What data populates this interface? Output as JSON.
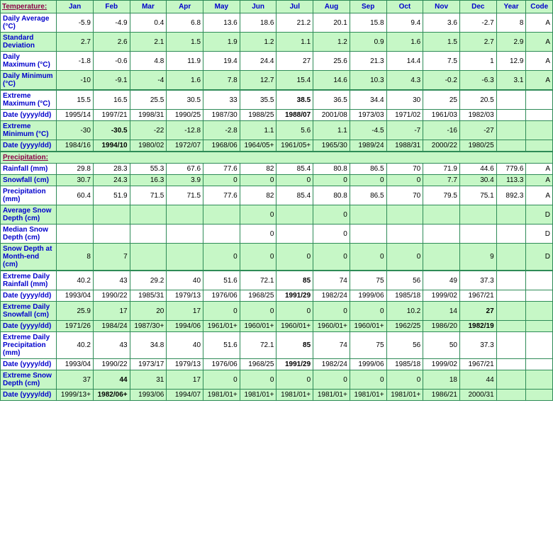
{
  "header": {
    "label": "Temperature:",
    "months": [
      "Jan",
      "Feb",
      "Mar",
      "Apr",
      "May",
      "Jun",
      "Jul",
      "Aug",
      "Sep",
      "Oct",
      "Nov",
      "Dec"
    ],
    "year": "Year",
    "code": "Code"
  },
  "section2_label": "Precipitation:",
  "rows": [
    {
      "label": "Daily Average (°C)",
      "shade": "odd",
      "cells": [
        "-5.9",
        "-4.9",
        "0.4",
        "6.8",
        "13.6",
        "18.6",
        "21.2",
        "20.1",
        "15.8",
        "9.4",
        "3.6",
        "-2.7",
        "8",
        "A"
      ],
      "bold": []
    },
    {
      "label": "Standard Deviation",
      "shade": "even",
      "cells": [
        "2.7",
        "2.6",
        "2.1",
        "1.5",
        "1.9",
        "1.2",
        "1.1",
        "1.2",
        "0.9",
        "1.6",
        "1.5",
        "2.7",
        "2.9",
        "A"
      ],
      "bold": []
    },
    {
      "label": "Daily Maximum (°C)",
      "shade": "odd",
      "cells": [
        "-1.8",
        "-0.6",
        "4.8",
        "11.9",
        "19.4",
        "24.4",
        "27",
        "25.6",
        "21.3",
        "14.4",
        "7.5",
        "1",
        "12.9",
        "A"
      ],
      "bold": []
    },
    {
      "label": "Daily Minimum (°C)",
      "shade": "even",
      "cells": [
        "-10",
        "-9.1",
        "-4",
        "1.6",
        "7.8",
        "12.7",
        "15.4",
        "14.6",
        "10.3",
        "4.3",
        "-0.2",
        "-6.3",
        "3.1",
        "A"
      ],
      "bold": [],
      "thickBottom": true
    },
    {
      "label": "Extreme Maximum (°C)",
      "shade": "odd",
      "cells": [
        "15.5",
        "16.5",
        "25.5",
        "30.5",
        "33",
        "35.5",
        "38.5",
        "36.5",
        "34.4",
        "30",
        "25",
        "20.5",
        "",
        ""
      ],
      "bold": [
        6
      ]
    },
    {
      "label": "Date (yyyy/dd)",
      "shade": "odd",
      "cells": [
        "1995/14",
        "1997/21",
        "1998/31",
        "1990/25",
        "1987/30",
        "1988/25",
        "1988/07",
        "2001/08",
        "1973/03",
        "1971/02",
        "1961/03",
        "1982/03",
        "",
        ""
      ],
      "bold": [
        6
      ]
    },
    {
      "label": "Extreme Minimum (°C)",
      "shade": "even",
      "cells": [
        "-30",
        "-30.5",
        "-22",
        "-12.8",
        "-2.8",
        "1.1",
        "5.6",
        "1.1",
        "-4.5",
        "-7",
        "-16",
        "-27",
        "",
        ""
      ],
      "bold": [
        1
      ]
    },
    {
      "label": "Date (yyyy/dd)",
      "shade": "even",
      "cells": [
        "1984/16",
        "1994/10",
        "1980/02",
        "1972/07",
        "1968/06",
        "1964/05+",
        "1961/05+",
        "1965/30",
        "1989/24",
        "1988/31",
        "2000/22",
        "1980/25",
        "",
        ""
      ],
      "bold": [
        1
      ],
      "thickBottom": true
    },
    {
      "section": true
    },
    {
      "label": "Rainfall (mm)",
      "shade": "odd",
      "cells": [
        "29.8",
        "28.3",
        "55.3",
        "67.6",
        "77.6",
        "82",
        "85.4",
        "80.8",
        "86.5",
        "70",
        "71.9",
        "44.6",
        "779.6",
        "A"
      ],
      "bold": []
    },
    {
      "label": "Snowfall (cm)",
      "shade": "even",
      "cells": [
        "30.7",
        "24.3",
        "16.3",
        "3.9",
        "0",
        "0",
        "0",
        "0",
        "0",
        "0",
        "7.7",
        "30.4",
        "113.3",
        "A"
      ],
      "bold": []
    },
    {
      "label": "Precipitation (mm)",
      "shade": "odd",
      "cells": [
        "60.4",
        "51.9",
        "71.5",
        "71.5",
        "77.6",
        "82",
        "85.4",
        "80.8",
        "86.5",
        "70",
        "79.5",
        "75.1",
        "892.3",
        "A"
      ],
      "bold": []
    },
    {
      "label": "Average Snow Depth (cm)",
      "shade": "even",
      "cells": [
        "",
        "",
        "",
        "",
        "",
        "0",
        "",
        "0",
        "",
        "",
        "",
        "",
        "",
        "D"
      ],
      "bold": []
    },
    {
      "label": "Median Snow Depth (cm)",
      "shade": "odd",
      "cells": [
        "",
        "",
        "",
        "",
        "",
        "0",
        "",
        "0",
        "",
        "",
        "",
        "",
        "",
        "D"
      ],
      "bold": []
    },
    {
      "label": "Snow Depth at Month-end (cm)",
      "shade": "even",
      "cells": [
        "8",
        "7",
        "",
        "",
        "0",
        "0",
        "0",
        "0",
        "0",
        "0",
        "",
        "9",
        "",
        "D"
      ],
      "bold": [],
      "thickBottom": true
    },
    {
      "label": "Extreme Daily Rainfall (mm)",
      "shade": "odd",
      "cells": [
        "40.2",
        "43",
        "29.2",
        "40",
        "51.6",
        "72.1",
        "85",
        "74",
        "75",
        "56",
        "49",
        "37.3",
        "",
        ""
      ],
      "bold": [
        6
      ]
    },
    {
      "label": "Date (yyyy/dd)",
      "shade": "odd",
      "cells": [
        "1993/04",
        "1990/22",
        "1985/31",
        "1979/13",
        "1976/06",
        "1968/25",
        "1991/29",
        "1982/24",
        "1999/06",
        "1985/18",
        "1999/02",
        "1967/21",
        "",
        ""
      ],
      "bold": [
        6
      ]
    },
    {
      "label": "Extreme Daily Snowfall (cm)",
      "shade": "even",
      "cells": [
        "25.9",
        "17",
        "20",
        "17",
        "0",
        "0",
        "0",
        "0",
        "0",
        "10.2",
        "14",
        "27",
        "",
        ""
      ],
      "bold": [
        11
      ]
    },
    {
      "label": "Date (yyyy/dd)",
      "shade": "even",
      "cells": [
        "1971/26",
        "1984/24",
        "1987/30+",
        "1994/06",
        "1961/01+",
        "1960/01+",
        "1960/01+",
        "1960/01+",
        "1960/01+",
        "1962/25",
        "1986/20",
        "1982/19",
        "",
        ""
      ],
      "bold": [
        11
      ]
    },
    {
      "label": "Extreme Daily Precipitation (mm)",
      "shade": "odd",
      "cells": [
        "40.2",
        "43",
        "34.8",
        "40",
        "51.6",
        "72.1",
        "85",
        "74",
        "75",
        "56",
        "50",
        "37.3",
        "",
        ""
      ],
      "bold": [
        6
      ]
    },
    {
      "label": "Date (yyyy/dd)",
      "shade": "odd",
      "cells": [
        "1993/04",
        "1990/22",
        "1973/17",
        "1979/13",
        "1976/06",
        "1968/25",
        "1991/29",
        "1982/24",
        "1999/06",
        "1985/18",
        "1999/02",
        "1967/21",
        "",
        ""
      ],
      "bold": [
        6
      ]
    },
    {
      "label": "Extreme Snow Depth (cm)",
      "shade": "even",
      "cells": [
        "37",
        "44",
        "31",
        "17",
        "0",
        "0",
        "0",
        "0",
        "0",
        "0",
        "18",
        "44",
        "",
        ""
      ],
      "bold": [
        1
      ]
    },
    {
      "label": "Date (yyyy/dd)",
      "shade": "even",
      "cells": [
        "1999/13+",
        "1982/06+",
        "1993/06",
        "1994/07",
        "1981/01+",
        "1981/01+",
        "1981/01+",
        "1981/01+",
        "1981/01+",
        "1981/01+",
        "1986/21",
        "2000/31",
        "",
        ""
      ],
      "bold": [
        1
      ]
    }
  ]
}
